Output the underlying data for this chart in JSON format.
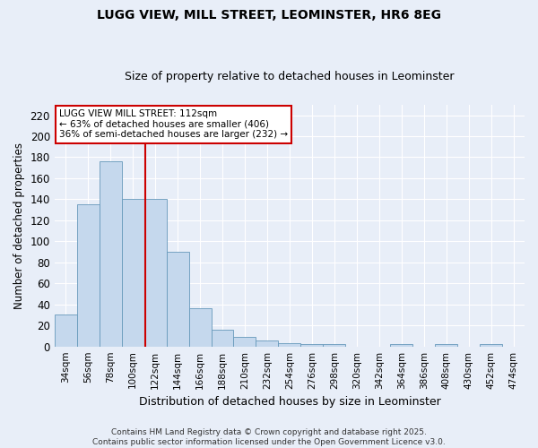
{
  "title": "LUGG VIEW, MILL STREET, LEOMINSTER, HR6 8EG",
  "subtitle": "Size of property relative to detached houses in Leominster",
  "xlabel": "Distribution of detached houses by size in Leominster",
  "ylabel": "Number of detached properties",
  "categories": [
    "34sqm",
    "56sqm",
    "78sqm",
    "100sqm",
    "122sqm",
    "144sqm",
    "166sqm",
    "188sqm",
    "210sqm",
    "232sqm",
    "254sqm",
    "276sqm",
    "298sqm",
    "320sqm",
    "342sqm",
    "364sqm",
    "386sqm",
    "408sqm",
    "430sqm",
    "452sqm",
    "474sqm"
  ],
  "values": [
    30,
    135,
    176,
    140,
    140,
    90,
    36,
    16,
    9,
    6,
    3,
    2,
    2,
    0,
    0,
    2,
    0,
    2,
    0,
    2,
    0
  ],
  "bar_color": "#c5d8ed",
  "bar_edge_color": "#6699bb",
  "vline_color": "#cc0000",
  "annotation_title": "LUGG VIEW MILL STREET: 112sqm",
  "annotation_line1": "← 63% of detached houses are smaller (406)",
  "annotation_line2": "36% of semi-detached houses are larger (232) →",
  "annotation_box_color": "#cc0000",
  "ylim": [
    0,
    230
  ],
  "yticks": [
    0,
    20,
    40,
    60,
    80,
    100,
    120,
    140,
    160,
    180,
    200,
    220
  ],
  "footer_line1": "Contains HM Land Registry data © Crown copyright and database right 2025.",
  "footer_line2": "Contains public sector information licensed under the Open Government Licence v3.0.",
  "background_color": "#e8eef8",
  "plot_background": "#e8eef8",
  "grid_color": "#ffffff"
}
